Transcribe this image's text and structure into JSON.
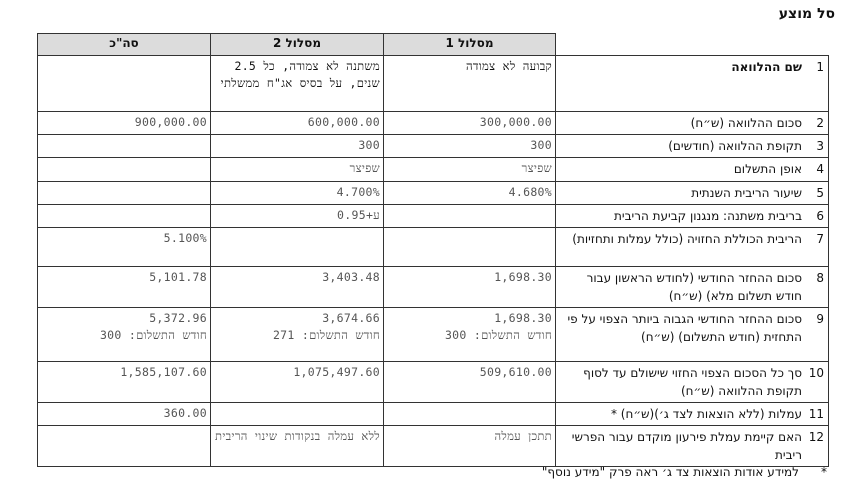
{
  "title": "סל מוצע",
  "headers": {
    "track1": "מסלול 1",
    "track2": "מסלול 2",
    "total": "סה\"כ"
  },
  "rows": [
    {
      "num": "1",
      "label": "שם ההלוואה",
      "track1": "קבועה לא צמודה",
      "track1_sub": "",
      "track2": "משתנה לא צמודה, כל 2.5 שנים, על בסיס אג\"ח ממשלתי",
      "track2_sub": "",
      "total": "",
      "total_sub": ""
    },
    {
      "num": "2",
      "label": "סכום ההלוואה (ש״ח)",
      "track1": "300,000.00",
      "track1_sub": "",
      "track2": "600,000.00",
      "track2_sub": "",
      "total": "900,000.00",
      "total_sub": ""
    },
    {
      "num": "3",
      "label": "תקופת ההלוואה (חודשים)",
      "track1": "300",
      "track1_sub": "",
      "track2": "300",
      "track2_sub": "",
      "total": "",
      "total_sub": ""
    },
    {
      "num": "4",
      "label": "אופן התשלום",
      "track1": "שפיצר",
      "track1_sub": "",
      "track2": "שפיצר",
      "track2_sub": "",
      "total": "",
      "total_sub": ""
    },
    {
      "num": "5",
      "label": "שיעור הריבית השנתית",
      "track1": "4.680%",
      "track1_sub": "",
      "track2": "4.700%",
      "track2_sub": "",
      "total": "",
      "total_sub": ""
    },
    {
      "num": "6",
      "label": "בריבית משתנה: מנגנון קביעת הריבית",
      "track1": "",
      "track1_sub": "",
      "track2": "ע+0.95",
      "track2_sub": "",
      "total": "",
      "total_sub": ""
    },
    {
      "num": "7",
      "label": "הריבית הכוללת החזויה (כולל עמלות ותחזיות)",
      "track1": "",
      "track1_sub": "",
      "track2": "",
      "track2_sub": "",
      "total": "5.100%",
      "total_sub": ""
    },
    {
      "num": "8",
      "label": "סכום ההחזר החודשי (לחודש הראשון עבור חודש תשלום מלא) (ש״ח)",
      "track1": "1,698.30",
      "track1_sub": "",
      "track2": "3,403.48",
      "track2_sub": "",
      "total": "5,101.78",
      "total_sub": ""
    },
    {
      "num": "9",
      "label": "סכום ההחזר החודשי הגבוה ביותר הצפוי על פי התחזית (חודש התשלום) (ש״ח)",
      "track1": "1,698.30",
      "track1_sub": "חודש התשלום: 300",
      "track2": "3,674.66",
      "track2_sub": "חודש התשלום: 271",
      "total": "5,372.96",
      "total_sub": "חודש התשלום: 300"
    },
    {
      "num": "10",
      "label": "סך כל הסכום הצפוי החזוי שישולם עד לסוף תקופת ההלוואה (ש״ח)",
      "track1": "509,610.00",
      "track1_sub": "",
      "track2": "1,075,497.60",
      "track2_sub": "",
      "total": "1,585,107.60",
      "total_sub": ""
    },
    {
      "num": "11",
      "label": "עמלות (ללא הוצאות לצד ג׳)(ש״ח) *",
      "track1": "",
      "track1_sub": "",
      "track2": "",
      "track2_sub": "",
      "total": "360.00",
      "total_sub": ""
    },
    {
      "num": "12",
      "label": "האם קיימת עמלת פירעון מוקדם עבור הפרשי ריבית",
      "track1": "תתכן עמלה",
      "track1_sub": "",
      "track2": "ללא עמלה בנקודות שינוי הריבית",
      "track2_sub": "",
      "total": "",
      "total_sub": ""
    }
  ],
  "footnote": {
    "mark": "*",
    "text": "למידע אודות הוצאות צד ג׳ ראה פרק \"מידע נוסף\""
  }
}
